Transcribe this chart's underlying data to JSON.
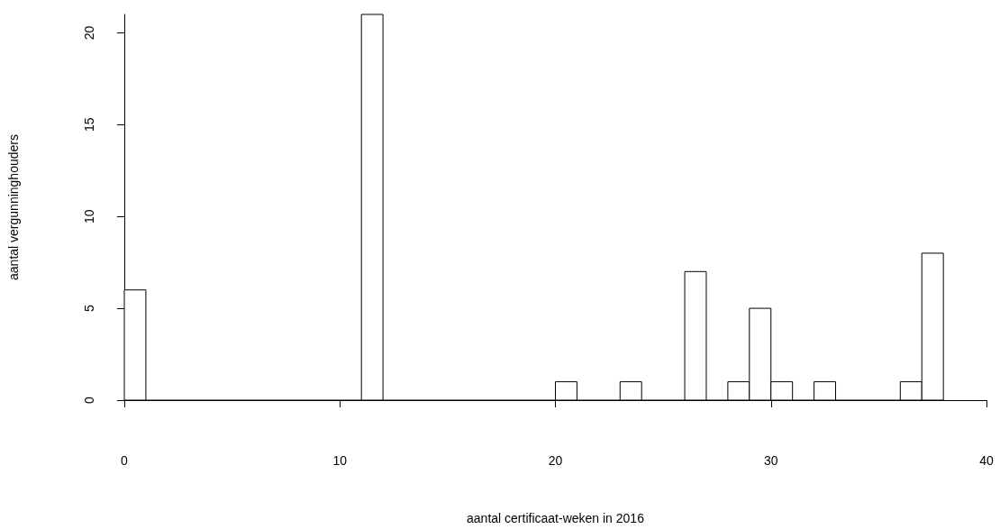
{
  "chart_data": {
    "type": "histogram",
    "xlabel": "aantal certificaat-weken in 2016",
    "ylabel": "aantal vergunninghouders",
    "bins": [
      0,
      1,
      2,
      3,
      4,
      5,
      6,
      7,
      8,
      9,
      10,
      11,
      12,
      13,
      14,
      15,
      16,
      17,
      18,
      19,
      20,
      21,
      22,
      23,
      24,
      25,
      26,
      27,
      28,
      29,
      30,
      31,
      32,
      33,
      34,
      35,
      36,
      37,
      38
    ],
    "values": [
      6,
      0,
      0,
      0,
      0,
      0,
      0,
      0,
      0,
      0,
      0,
      21,
      0,
      0,
      0,
      0,
      0,
      0,
      0,
      0,
      1,
      0,
      0,
      1,
      0,
      0,
      7,
      0,
      1,
      5,
      1,
      0,
      1,
      0,
      0,
      0,
      1,
      8
    ],
    "color": "#ffffff",
    "xlim": [
      0,
      40
    ],
    "xticks": [
      0,
      10,
      20,
      30,
      40
    ],
    "ylim": [
      0,
      21
    ],
    "yticks": [
      0,
      5,
      10,
      15,
      20
    ],
    "grid": false
  }
}
